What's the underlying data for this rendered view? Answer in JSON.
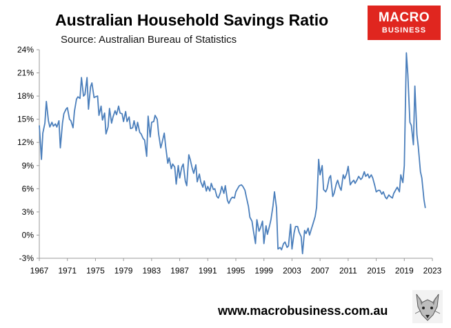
{
  "header": {
    "title": "Australian Household Savings Ratio",
    "subtitle": "Source: Australian Bureau of Statistics"
  },
  "logo": {
    "line1": "MACRO",
    "line2": "BUSINESS"
  },
  "footer": {
    "url": "www.macrobusiness.com.au",
    "mascot_icon": "fox-icon"
  },
  "colors": {
    "line": "#4a7ebb",
    "logo_bg": "#e0261f",
    "axis": "#999999"
  },
  "chart_data": {
    "type": "line",
    "title": "Australian Household Savings Ratio",
    "xlabel": "",
    "ylabel": "",
    "xlim": [
      1967,
      2023
    ],
    "ylim": [
      -3,
      24
    ],
    "grid": false,
    "legend": "none",
    "x_ticks": [
      "1967",
      "1971",
      "1975",
      "1979",
      "1983",
      "1987",
      "1991",
      "1995",
      "1999",
      "2003",
      "2007",
      "2011",
      "2015",
      "2019",
      "2023"
    ],
    "y_ticks": [
      "24%",
      "21%",
      "18%",
      "15%",
      "12%",
      "9%",
      "6%",
      "3%",
      "0%",
      "-3%"
    ],
    "series": [
      {
        "name": "",
        "points": [
          [
            1967.0,
            14.2
          ],
          [
            1967.3,
            9.8
          ],
          [
            1967.5,
            13.2
          ],
          [
            1967.8,
            14.5
          ],
          [
            1968.0,
            17.3
          ],
          [
            1968.3,
            14.8
          ],
          [
            1968.5,
            14.0
          ],
          [
            1968.8,
            14.6
          ],
          [
            1969.0,
            14.1
          ],
          [
            1969.3,
            14.4
          ],
          [
            1969.5,
            14.0
          ],
          [
            1969.8,
            14.8
          ],
          [
            1970.0,
            11.3
          ],
          [
            1970.3,
            14.5
          ],
          [
            1970.5,
            15.7
          ],
          [
            1970.8,
            16.3
          ],
          [
            1971.0,
            16.5
          ],
          [
            1971.3,
            15.0
          ],
          [
            1971.5,
            14.8
          ],
          [
            1971.8,
            13.9
          ],
          [
            1972.0,
            16.0
          ],
          [
            1972.3,
            17.6
          ],
          [
            1972.5,
            17.9
          ],
          [
            1972.8,
            17.7
          ],
          [
            1973.0,
            20.4
          ],
          [
            1973.3,
            18.0
          ],
          [
            1973.5,
            18.2
          ],
          [
            1973.8,
            20.4
          ],
          [
            1974.0,
            16.3
          ],
          [
            1974.3,
            19.2
          ],
          [
            1974.5,
            19.7
          ],
          [
            1974.8,
            17.8
          ],
          [
            1975.0,
            17.9
          ],
          [
            1975.3,
            18.0
          ],
          [
            1975.5,
            15.5
          ],
          [
            1975.8,
            16.7
          ],
          [
            1976.0,
            14.9
          ],
          [
            1976.3,
            15.8
          ],
          [
            1976.5,
            13.1
          ],
          [
            1976.8,
            14.0
          ],
          [
            1977.0,
            16.4
          ],
          [
            1977.3,
            14.5
          ],
          [
            1977.5,
            15.3
          ],
          [
            1977.8,
            16.1
          ],
          [
            1978.0,
            15.6
          ],
          [
            1978.3,
            16.7
          ],
          [
            1978.5,
            15.8
          ],
          [
            1978.8,
            15.7
          ],
          [
            1979.0,
            14.7
          ],
          [
            1979.3,
            16.0
          ],
          [
            1979.5,
            14.7
          ],
          [
            1979.8,
            15.3
          ],
          [
            1980.0,
            13.8
          ],
          [
            1980.3,
            13.9
          ],
          [
            1980.5,
            14.8
          ],
          [
            1980.8,
            13.5
          ],
          [
            1981.0,
            14.6
          ],
          [
            1981.3,
            13.3
          ],
          [
            1981.5,
            13.1
          ],
          [
            1981.8,
            12.5
          ],
          [
            1982.0,
            12.3
          ],
          [
            1982.3,
            10.2
          ],
          [
            1982.5,
            15.4
          ],
          [
            1982.8,
            12.7
          ],
          [
            1983.0,
            14.6
          ],
          [
            1983.3,
            14.7
          ],
          [
            1983.5,
            15.5
          ],
          [
            1983.8,
            15.0
          ],
          [
            1984.0,
            13.1
          ],
          [
            1984.3,
            11.3
          ],
          [
            1984.5,
            12.0
          ],
          [
            1984.8,
            13.2
          ],
          [
            1985.0,
            11.5
          ],
          [
            1985.3,
            9.3
          ],
          [
            1985.5,
            10.0
          ],
          [
            1985.8,
            8.6
          ],
          [
            1986.0,
            9.2
          ],
          [
            1986.3,
            8.8
          ],
          [
            1986.5,
            6.6
          ],
          [
            1986.8,
            9.0
          ],
          [
            1987.0,
            7.4
          ],
          [
            1987.3,
            8.8
          ],
          [
            1987.5,
            9.2
          ],
          [
            1987.8,
            7.0
          ],
          [
            1988.0,
            6.4
          ],
          [
            1988.3,
            10.4
          ],
          [
            1988.5,
            9.8
          ],
          [
            1988.8,
            8.6
          ],
          [
            1989.0,
            8.0
          ],
          [
            1989.3,
            9.1
          ],
          [
            1989.5,
            6.9
          ],
          [
            1989.8,
            7.9
          ],
          [
            1990.0,
            6.9
          ],
          [
            1990.3,
            6.2
          ],
          [
            1990.5,
            7.0
          ],
          [
            1990.8,
            5.7
          ],
          [
            1991.0,
            6.3
          ],
          [
            1991.3,
            5.7
          ],
          [
            1991.5,
            6.7
          ],
          [
            1991.8,
            5.9
          ],
          [
            1992.0,
            6.0
          ],
          [
            1992.3,
            5.0
          ],
          [
            1992.5,
            4.8
          ],
          [
            1992.8,
            5.5
          ],
          [
            1993.0,
            6.3
          ],
          [
            1993.3,
            5.4
          ],
          [
            1993.5,
            6.4
          ],
          [
            1993.8,
            4.5
          ],
          [
            1994.0,
            4.1
          ],
          [
            1994.3,
            4.7
          ],
          [
            1994.5,
            4.9
          ],
          [
            1994.8,
            4.8
          ],
          [
            1995.0,
            5.6
          ],
          [
            1995.3,
            6.1
          ],
          [
            1995.5,
            6.4
          ],
          [
            1995.8,
            6.5
          ],
          [
            1996.0,
            6.3
          ],
          [
            1996.3,
            5.8
          ],
          [
            1996.5,
            4.9
          ],
          [
            1996.8,
            3.7
          ],
          [
            1997.0,
            2.3
          ],
          [
            1997.3,
            1.8
          ],
          [
            1997.5,
            0.6
          ],
          [
            1997.8,
            -1.1
          ],
          [
            1998.0,
            2.0
          ],
          [
            1998.3,
            0.5
          ],
          [
            1998.5,
            0.9
          ],
          [
            1998.8,
            1.8
          ],
          [
            1999.0,
            -1.1
          ],
          [
            1999.3,
            1.2
          ],
          [
            1999.5,
            0.1
          ],
          [
            1999.8,
            1.2
          ],
          [
            2000.0,
            2.0
          ],
          [
            2000.3,
            3.8
          ],
          [
            2000.5,
            5.6
          ],
          [
            2000.8,
            3.5
          ],
          [
            2001.0,
            -1.8
          ],
          [
            2001.3,
            -1.6
          ],
          [
            2001.5,
            -1.9
          ],
          [
            2001.8,
            -1.1
          ],
          [
            2002.0,
            -0.9
          ],
          [
            2002.3,
            -1.6
          ],
          [
            2002.5,
            -1.4
          ],
          [
            2002.8,
            1.4
          ],
          [
            2003.0,
            -1.8
          ],
          [
            2003.3,
            0.3
          ],
          [
            2003.5,
            1.1
          ],
          [
            2003.8,
            1.1
          ],
          [
            2004.0,
            0.4
          ],
          [
            2004.3,
            -0.2
          ],
          [
            2004.5,
            -2.4
          ],
          [
            2004.8,
            0.6
          ],
          [
            2005.0,
            0.2
          ],
          [
            2005.3,
            0.9
          ],
          [
            2005.5,
            0.0
          ],
          [
            2005.8,
            0.9
          ],
          [
            2006.0,
            1.5
          ],
          [
            2006.3,
            2.4
          ],
          [
            2006.5,
            3.6
          ],
          [
            2006.8,
            9.8
          ],
          [
            2007.0,
            7.8
          ],
          [
            2007.3,
            9.0
          ],
          [
            2007.5,
            5.9
          ],
          [
            2007.8,
            5.6
          ],
          [
            2008.0,
            6.0
          ],
          [
            2008.3,
            7.4
          ],
          [
            2008.5,
            7.7
          ],
          [
            2008.8,
            5.0
          ],
          [
            2009.0,
            5.4
          ],
          [
            2009.3,
            6.6
          ],
          [
            2009.5,
            7.1
          ],
          [
            2009.8,
            6.2
          ],
          [
            2010.0,
            5.8
          ],
          [
            2010.3,
            7.8
          ],
          [
            2010.5,
            7.3
          ],
          [
            2010.8,
            8.0
          ],
          [
            2011.0,
            8.9
          ],
          [
            2011.3,
            6.5
          ],
          [
            2011.5,
            6.8
          ],
          [
            2011.8,
            7.1
          ],
          [
            2012.0,
            6.7
          ],
          [
            2012.3,
            7.2
          ],
          [
            2012.5,
            7.6
          ],
          [
            2012.8,
            7.2
          ],
          [
            2013.0,
            7.4
          ],
          [
            2013.3,
            8.2
          ],
          [
            2013.5,
            7.6
          ],
          [
            2013.8,
            7.9
          ],
          [
            2014.0,
            7.4
          ],
          [
            2014.3,
            7.8
          ],
          [
            2014.5,
            7.4
          ],
          [
            2014.8,
            6.4
          ],
          [
            2015.0,
            5.6
          ],
          [
            2015.3,
            5.8
          ],
          [
            2015.5,
            5.8
          ],
          [
            2015.8,
            5.3
          ],
          [
            2016.0,
            5.6
          ],
          [
            2016.3,
            4.9
          ],
          [
            2016.5,
            4.7
          ],
          [
            2016.8,
            5.2
          ],
          [
            2017.0,
            5.0
          ],
          [
            2017.3,
            4.8
          ],
          [
            2017.5,
            5.4
          ],
          [
            2017.8,
            5.9
          ],
          [
            2018.0,
            6.2
          ],
          [
            2018.3,
            5.6
          ],
          [
            2018.5,
            7.8
          ],
          [
            2018.8,
            6.8
          ],
          [
            2019.0,
            9.0
          ],
          [
            2019.3,
            23.6
          ],
          [
            2019.5,
            20.8
          ],
          [
            2019.8,
            14.6
          ],
          [
            2020.0,
            14.2
          ],
          [
            2020.3,
            11.7
          ],
          [
            2020.5,
            19.3
          ],
          [
            2020.8,
            13.0
          ],
          [
            2021.0,
            11.4
          ],
          [
            2021.3,
            8.2
          ],
          [
            2021.5,
            7.4
          ],
          [
            2021.8,
            4.6
          ],
          [
            2022.0,
            3.5
          ]
        ]
      }
    ]
  }
}
